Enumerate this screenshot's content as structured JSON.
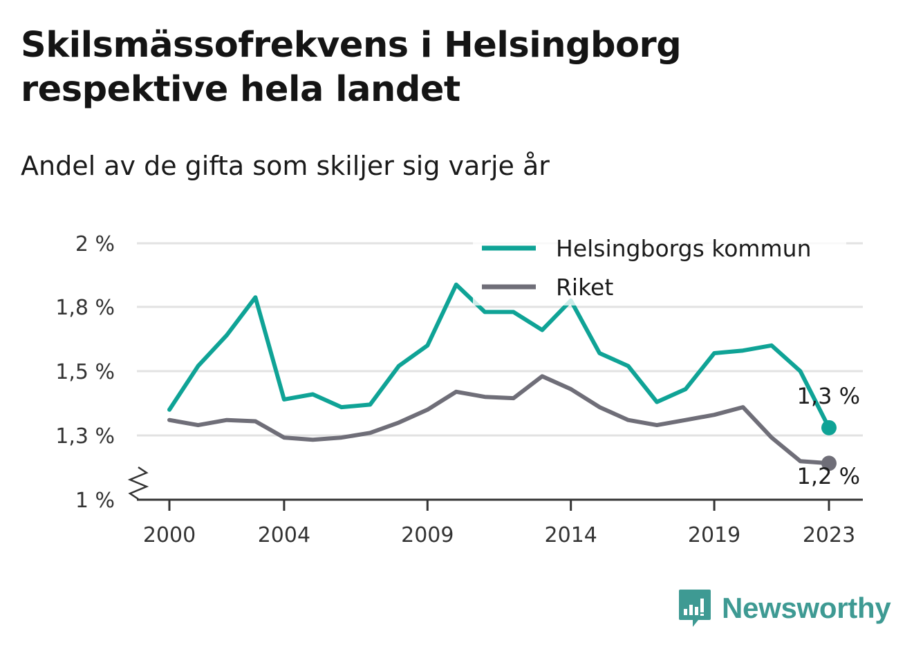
{
  "title": "Skilsmässofrekvens i Helsingborg respektive hela landet",
  "subtitle": "Andel av de gifta som skiljer sig varje år",
  "brand": "Newsworthy",
  "colors": {
    "helsingborg": "#0fa396",
    "riket": "#6f6e78",
    "grid": "#e2e2e2",
    "axis": "#333333",
    "brand": "#3e9a93"
  },
  "chart_data": {
    "type": "line",
    "x": [
      2000,
      2001,
      2002,
      2003,
      2004,
      2005,
      2006,
      2007,
      2008,
      2009,
      2010,
      2011,
      2012,
      2013,
      2014,
      2015,
      2016,
      2017,
      2018,
      2019,
      2020,
      2021,
      2022,
      2023
    ],
    "xticks": [
      2000,
      2004,
      2009,
      2014,
      2019,
      2023
    ],
    "xtick_labels": [
      "2000",
      "2004",
      "2009",
      "2014",
      "2019",
      "2023"
    ],
    "yticks": [
      1.0,
      1.3,
      1.55,
      1.8,
      2.0
    ],
    "ytick_labels": [
      "1 %",
      "1,3 %",
      "1,5 %",
      "1,8 %",
      "2 %"
    ],
    "ylim": [
      1.0,
      2.0
    ],
    "axis_break": true,
    "grid": true,
    "legend_position": "top-right",
    "series": [
      {
        "name": "Helsingborgs kommun",
        "color": "#0fa396",
        "values": [
          1.4,
          1.57,
          1.69,
          1.83,
          1.44,
          1.46,
          1.41,
          1.42,
          1.57,
          1.65,
          1.87,
          1.78,
          1.78,
          1.71,
          1.82,
          1.62,
          1.57,
          1.43,
          1.48,
          1.62,
          1.63,
          1.65,
          1.55,
          1.33
        ],
        "end_label": "1,3 %"
      },
      {
        "name": "Riket",
        "color": "#6f6e78",
        "values": [
          1.36,
          1.34,
          1.36,
          1.355,
          1.29,
          1.28,
          1.29,
          1.31,
          1.35,
          1.4,
          1.47,
          1.45,
          1.445,
          1.53,
          1.48,
          1.41,
          1.36,
          1.34,
          1.36,
          1.38,
          1.41,
          1.29,
          1.18,
          1.17
        ],
        "end_label": "1,2 %"
      }
    ]
  }
}
